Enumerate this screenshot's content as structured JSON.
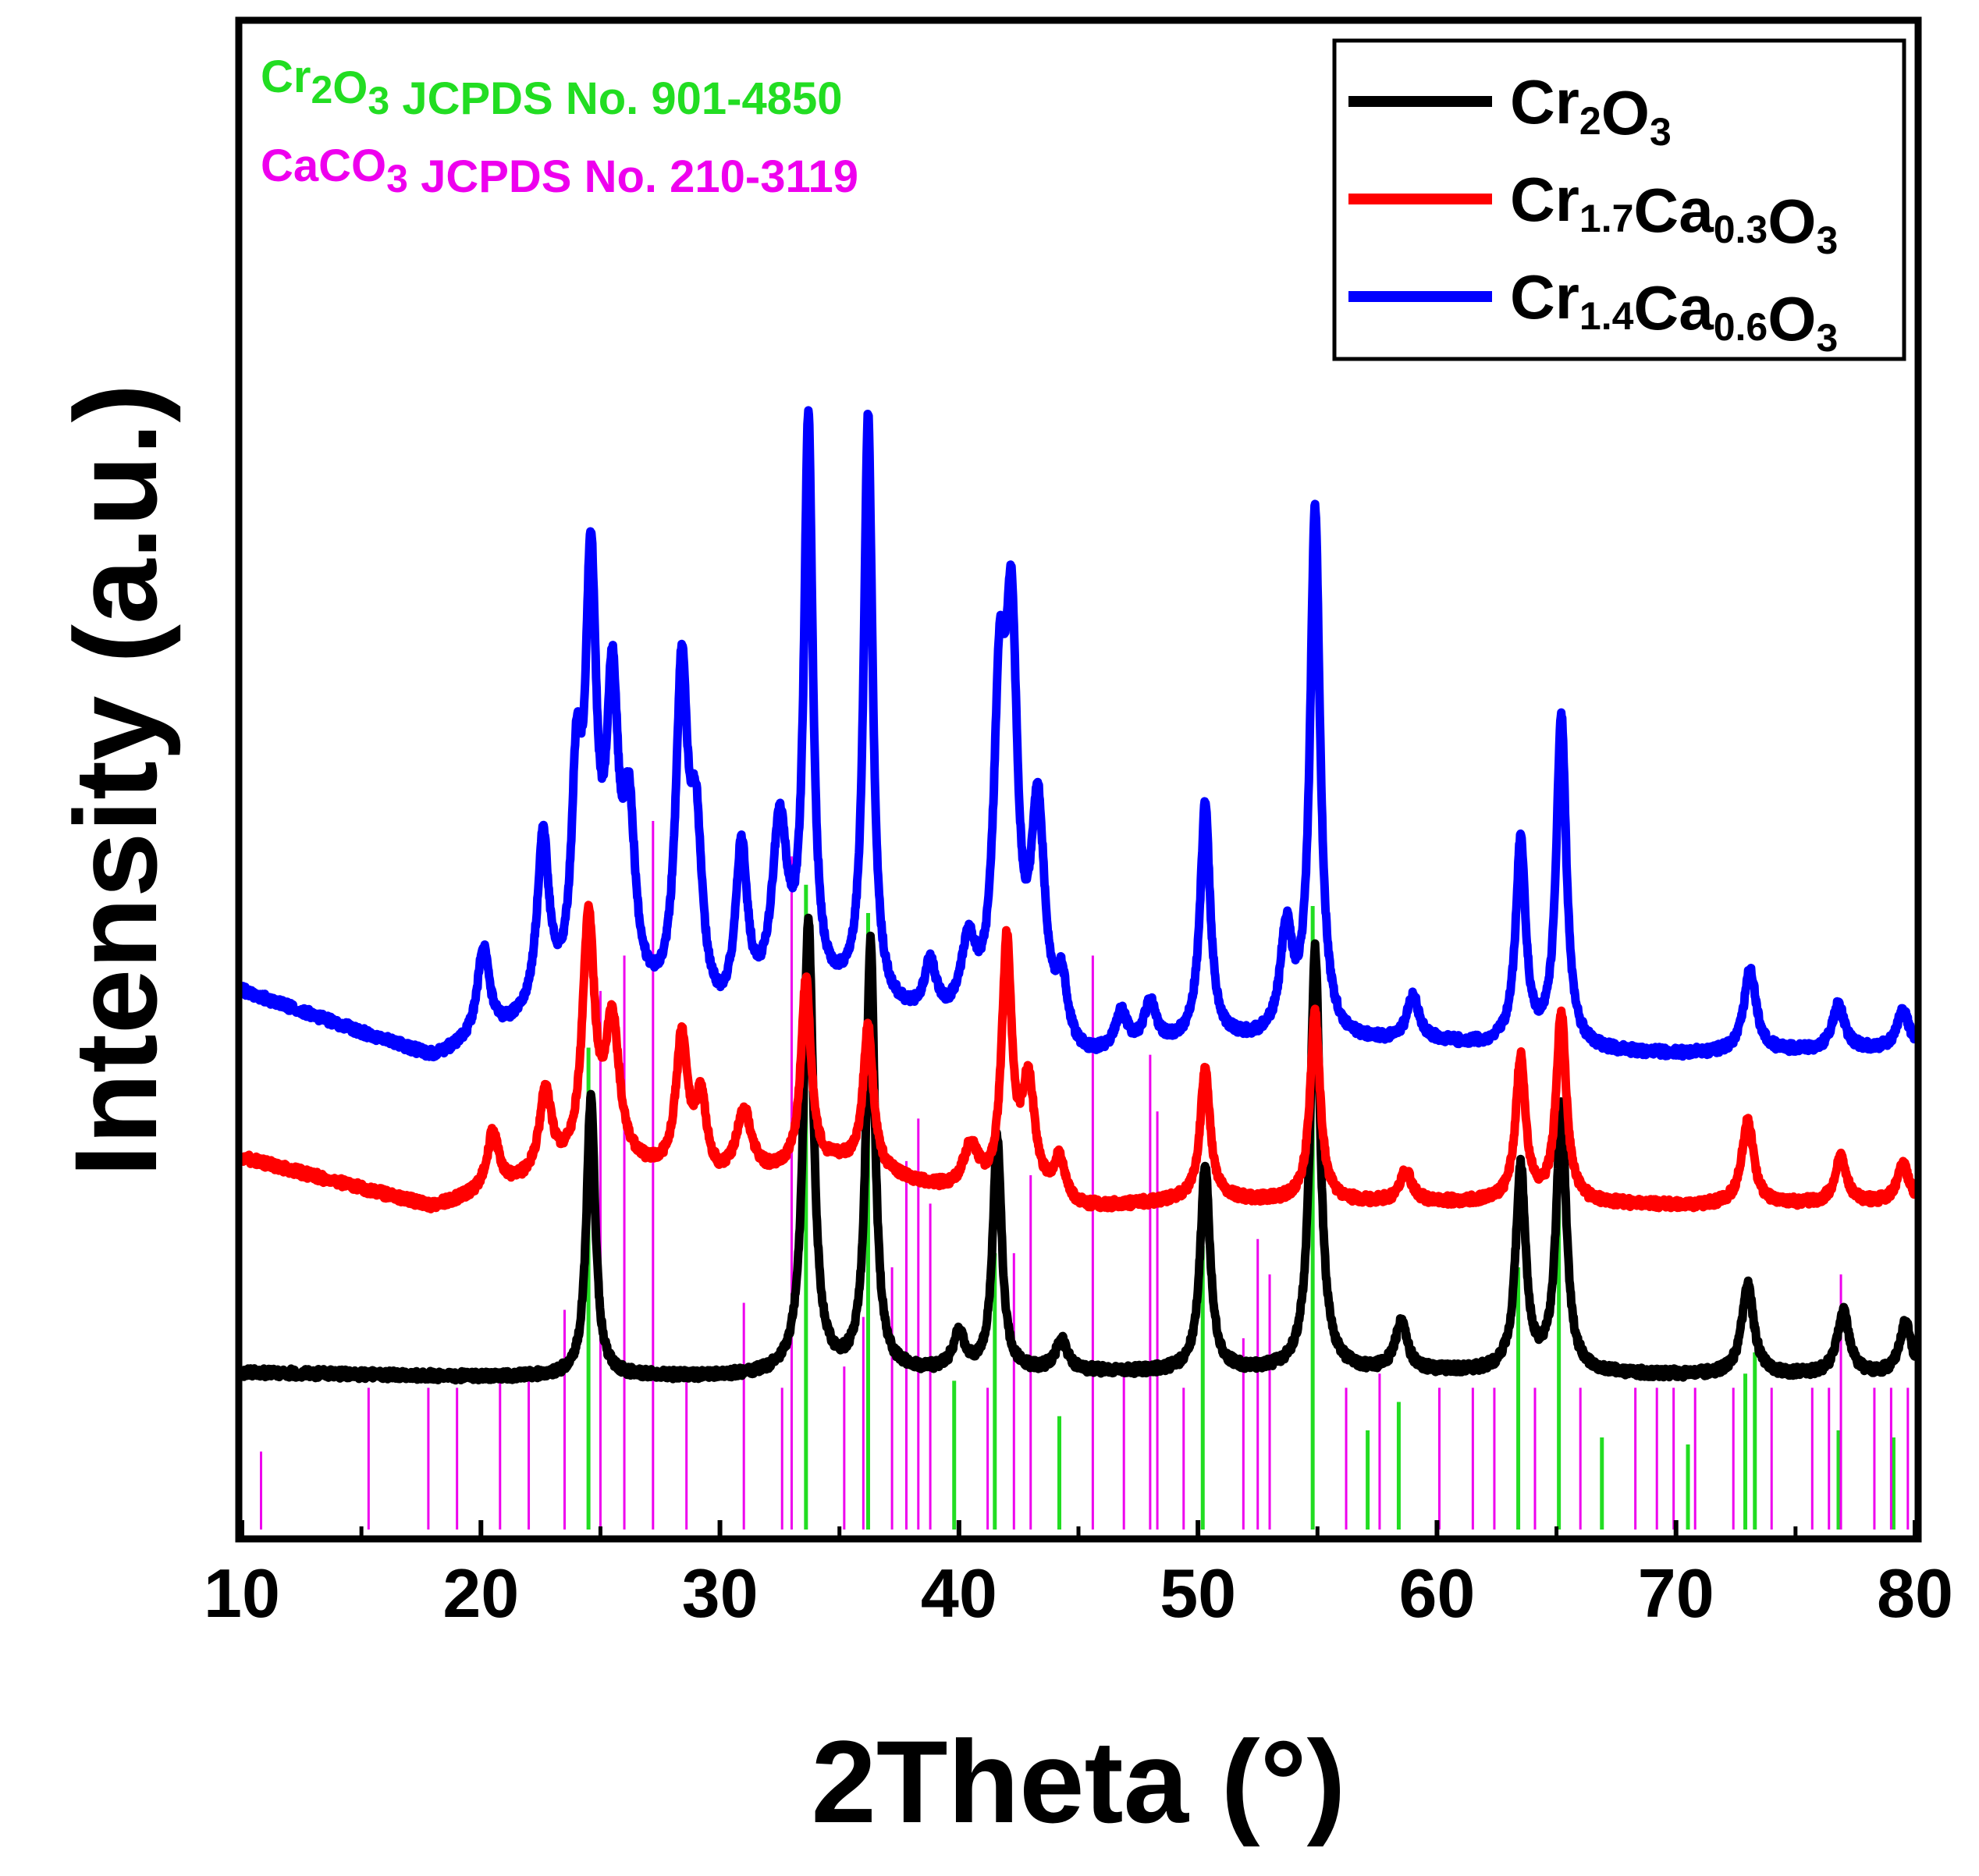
{
  "chart_data": {
    "type": "line",
    "title": "",
    "xlabel": "2Theta (°)",
    "ylabel": "Intensity (a.u.)",
    "xlim": [
      10,
      80
    ],
    "ylim": [
      0,
      10
    ],
    "xticks": [
      10,
      20,
      30,
      40,
      50,
      60,
      70,
      80
    ],
    "xtick_labels": [
      "10",
      "20",
      "30",
      "40",
      "50",
      "60",
      "70",
      "80"
    ],
    "yticks_shown": false,
    "legend_position": "top-right",
    "reference_cards": [
      {
        "name": "Cr2O3 JCPDS No. 901-4850",
        "main": "Cr",
        "sub1": "2",
        "mid": "O",
        "sub2": "3",
        "tail": " JCPDS No. 901-4850",
        "color": "#22dd22",
        "peaks_2theta": [
          24.5,
          33.6,
          36.2,
          39.8,
          41.5,
          44.2,
          50.2,
          54.8,
          57.1,
          58.4,
          63.4,
          65.1,
          66.9,
          70.5,
          72.9,
          73.3,
          76.8,
          79.1
        ],
        "peaks_rel_intensity": [
          0.68,
          0.91,
          0.87,
          0.21,
          0.39,
          0.16,
          0.4,
          0.88,
          0.14,
          0.18,
          0.37,
          0.49,
          0.13,
          0.12,
          0.22,
          0.25,
          0.14,
          0.13
        ]
      },
      {
        "name": "CaCO3 JCPDS No. 210-3119",
        "main": "CaCO",
        "sub1": "3",
        "mid": "",
        "sub2": "",
        "tail": " JCPDS No. 210-3119",
        "color": "#ee00ee",
        "peaks_2theta": [
          10.8,
          15.3,
          17.8,
          19.0,
          20.8,
          22.0,
          23.5,
          25.0,
          26.0,
          27.2,
          28.6,
          31.0,
          32.6,
          33.0,
          35.2,
          36.0,
          37.2,
          37.8,
          38.3,
          38.8,
          41.2,
          42.3,
          43.0,
          45.6,
          46.9,
          48.0,
          48.3,
          49.4,
          51.9,
          52.5,
          53.0,
          56.2,
          57.6,
          60.1,
          61.5,
          62.4,
          64.1,
          66.0,
          68.3,
          69.2,
          69.9,
          70.8,
          72.4,
          74.0,
          75.7,
          76.4,
          76.9,
          78.3,
          79.0,
          79.7
        ],
        "peaks_rel_intensity": [
          0.11,
          0.2,
          0.2,
          0.2,
          0.22,
          0.22,
          0.31,
          0.76,
          0.81,
          1.0,
          0.21,
          0.32,
          0.2,
          0.95,
          0.23,
          0.3,
          0.37,
          0.52,
          0.58,
          0.46,
          0.2,
          0.39,
          0.5,
          0.81,
          0.22,
          0.67,
          0.59,
          0.2,
          0.27,
          0.41,
          0.36,
          0.2,
          0.22,
          0.2,
          0.2,
          0.2,
          0.2,
          0.2,
          0.2,
          0.2,
          0.2,
          0.2,
          0.2,
          0.2,
          0.2,
          0.2,
          0.36,
          0.2,
          0.2,
          0.2
        ]
      }
    ],
    "series": [
      {
        "name": "Cr2O3",
        "main": "Cr",
        "sub1": "2",
        "mid": "O",
        "sub2": "3",
        "mid2": "",
        "sub3": "",
        "color": "#000000",
        "baseline": 1.0,
        "background": [
          [
            10,
            1.08
          ],
          [
            20,
            1.05
          ],
          [
            30,
            1.05
          ],
          [
            40,
            1.08
          ],
          [
            50,
            1.08
          ],
          [
            60,
            1.08
          ],
          [
            70,
            1.06
          ],
          [
            80,
            1.06
          ]
        ],
        "peaks": [
          [
            24.6,
            1.85,
            0.22
          ],
          [
            33.7,
            3.0,
            0.25
          ],
          [
            36.3,
            2.85,
            0.22
          ],
          [
            40.0,
            0.23,
            0.3
          ],
          [
            41.6,
            1.55,
            0.22
          ],
          [
            44.3,
            0.2,
            0.3
          ],
          [
            50.3,
            1.35,
            0.25
          ],
          [
            54.9,
            2.8,
            0.25
          ],
          [
            58.5,
            0.32,
            0.3
          ],
          [
            63.5,
            1.35,
            0.25
          ],
          [
            65.2,
            1.75,
            0.25
          ],
          [
            73.0,
            0.6,
            0.3
          ],
          [
            77.0,
            0.42,
            0.3
          ],
          [
            79.6,
            0.35,
            0.3
          ]
        ]
      },
      {
        "name": "Cr1.7Ca0.3O3",
        "main": "Cr",
        "sub1": "1.7",
        "mid": "Ca",
        "sub2": "0.3",
        "mid2": "O",
        "sub3": "3",
        "color": "#ff0000",
        "baseline": 2.8,
        "background": [
          [
            10,
            2.5
          ],
          [
            18,
            2.17
          ],
          [
            25,
            2.45
          ],
          [
            30,
            2.3
          ],
          [
            35,
            2.45
          ],
          [
            40,
            2.25
          ],
          [
            45,
            2.15
          ],
          [
            50,
            2.22
          ],
          [
            55,
            2.2
          ],
          [
            60,
            2.2
          ],
          [
            65,
            2.2
          ],
          [
            70,
            2.18
          ],
          [
            80,
            2.2
          ]
        ],
        "peaks": [
          [
            20.5,
            0.38,
            0.3
          ],
          [
            22.7,
            0.55,
            0.3
          ],
          [
            24.5,
            1.6,
            0.3
          ],
          [
            25.5,
            0.9,
            0.35
          ],
          [
            28.4,
            0.9,
            0.3
          ],
          [
            29.2,
            0.5,
            0.3
          ],
          [
            31.0,
            0.45,
            0.4
          ],
          [
            33.6,
            1.25,
            0.25
          ],
          [
            36.2,
            0.95,
            0.25
          ],
          [
            40.5,
            0.3,
            0.4
          ],
          [
            42.0,
            1.65,
            0.25
          ],
          [
            42.9,
            0.75,
            0.35
          ],
          [
            44.2,
            0.28,
            0.3
          ],
          [
            50.3,
            0.85,
            0.25
          ],
          [
            54.9,
            1.25,
            0.25
          ],
          [
            58.7,
            0.2,
            0.3
          ],
          [
            63.5,
            0.95,
            0.25
          ],
          [
            65.2,
            1.25,
            0.25
          ],
          [
            73.0,
            0.55,
            0.3
          ],
          [
            76.9,
            0.3,
            0.3
          ],
          [
            79.5,
            0.25,
            0.3
          ]
        ]
      },
      {
        "name": "Cr1.4Ca0.6O3",
        "main": "Cr",
        "sub1": "1.4",
        "mid": "Ca",
        "sub2": "0.6",
        "mid2": "O",
        "sub3": "3",
        "color": "#0000ff",
        "baseline": 3.8,
        "background": [
          [
            10,
            3.6
          ],
          [
            18,
            3.15
          ],
          [
            25,
            3.5
          ],
          [
            30,
            3.3
          ],
          [
            35,
            3.5
          ],
          [
            40,
            3.3
          ],
          [
            45,
            3.1
          ],
          [
            50,
            3.25
          ],
          [
            55,
            3.25
          ],
          [
            60,
            3.25
          ],
          [
            65,
            3.2
          ],
          [
            70,
            3.18
          ],
          [
            80,
            3.22
          ]
        ],
        "peaks": [
          [
            20.1,
            0.6,
            0.3
          ],
          [
            22.6,
            1.15,
            0.3
          ],
          [
            24.0,
            1.3,
            0.25
          ],
          [
            24.6,
            2.7,
            0.28
          ],
          [
            25.5,
            1.9,
            0.3
          ],
          [
            26.2,
            1.1,
            0.3
          ],
          [
            28.4,
            2.2,
            0.3
          ],
          [
            29.0,
            1.1,
            0.3
          ],
          [
            30.9,
            1.1,
            0.3
          ],
          [
            32.5,
            1.2,
            0.4
          ],
          [
            33.7,
            3.8,
            0.22
          ],
          [
            36.2,
            3.9,
            0.22
          ],
          [
            38.8,
            0.35,
            0.3
          ],
          [
            40.4,
            0.5,
            0.4
          ],
          [
            41.7,
            2.0,
            0.3
          ],
          [
            42.2,
            2.45,
            0.3
          ],
          [
            43.3,
            1.5,
            0.35
          ],
          [
            44.3,
            0.4,
            0.3
          ],
          [
            46.8,
            0.25,
            0.3
          ],
          [
            48.0,
            0.3,
            0.3
          ],
          [
            50.3,
            1.55,
            0.25
          ],
          [
            53.7,
            0.7,
            0.3
          ],
          [
            54.9,
            3.5,
            0.25
          ],
          [
            59.0,
            0.3,
            0.3
          ],
          [
            63.5,
            1.35,
            0.25
          ],
          [
            65.2,
            2.2,
            0.25
          ],
          [
            73.1,
            0.55,
            0.3
          ],
          [
            76.8,
            0.3,
            0.3
          ],
          [
            79.5,
            0.25,
            0.3
          ]
        ]
      }
    ]
  }
}
